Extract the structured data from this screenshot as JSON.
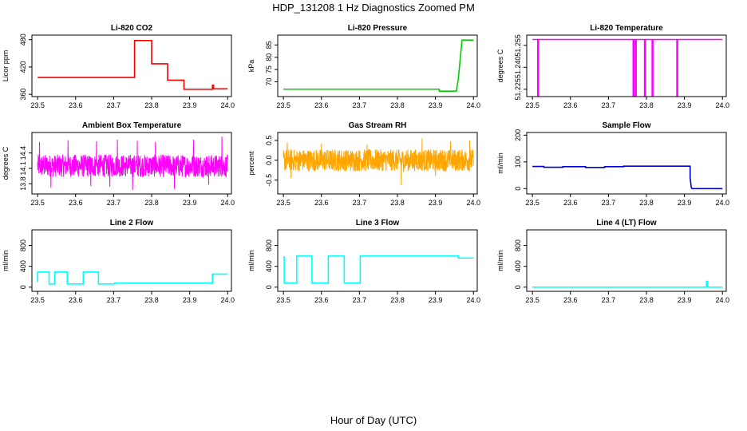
{
  "figure": {
    "title": "HDP_131208  1 Hz Diagnostics Zoomed PM",
    "xlabel": "Hour of Day (UTC)"
  },
  "chart_data": [
    {
      "type": "line",
      "title": "Li-820 CO2",
      "ylabel": "Licor ppm",
      "color": "#ff0000",
      "xlim": [
        23.485,
        24.01
      ],
      "ylim": [
        355,
        490
      ],
      "xticks": [
        23.5,
        23.6,
        23.7,
        23.8,
        23.9,
        24.0
      ],
      "xtick_labels": [
        "23.5",
        "23.6",
        "23.7",
        "23.8",
        "23.9",
        "24.0"
      ],
      "yticks": [
        360,
        420,
        480
      ],
      "ytick_labels": [
        "360",
        "420",
        "480"
      ],
      "series": [
        {
          "x": [
            23.5,
            23.755,
            23.755,
            23.8,
            23.8,
            23.842,
            23.842,
            23.885,
            23.885,
            23.96,
            23.96,
            23.963,
            23.963,
            24.0
          ],
          "y": [
            397,
            397,
            478,
            478,
            427,
            427,
            391,
            391,
            371,
            371,
            380,
            380,
            372,
            372
          ]
        }
      ]
    },
    {
      "type": "line",
      "title": "Li-820 Pressure",
      "ylabel": "kPa",
      "color": "#00cc00",
      "xlim": [
        23.485,
        24.01
      ],
      "ylim": [
        64,
        89
      ],
      "xticks": [
        23.5,
        23.6,
        23.7,
        23.8,
        23.9,
        24.0
      ],
      "xtick_labels": [
        "23.5",
        "23.6",
        "23.7",
        "23.8",
        "23.9",
        "24.0"
      ],
      "yticks": [
        70,
        75,
        80,
        85
      ],
      "ytick_labels": [
        "70",
        "75",
        "80",
        "85"
      ],
      "series": [
        {
          "x": [
            23.5,
            23.91,
            23.91,
            23.955,
            23.96,
            23.965,
            23.97,
            24.0
          ],
          "y": [
            67.0,
            67.0,
            66.2,
            66.2,
            71.0,
            79.0,
            87.0,
            87.0
          ]
        }
      ]
    },
    {
      "type": "line",
      "title": "Li-820 Temperature",
      "ylabel": "degrees C",
      "color": "#ff00ff",
      "xlim": [
        23.485,
        24.01
      ],
      "ylim": [
        51.22,
        51.262
      ],
      "xticks": [
        23.5,
        23.6,
        23.7,
        23.8,
        23.9,
        24.0
      ],
      "xtick_labels": [
        "23.5",
        "23.6",
        "23.7",
        "23.8",
        "23.9",
        "24.0"
      ],
      "yticks": [
        51.225,
        51.24,
        51.255
      ],
      "ytick_labels": [
        "51.225",
        "51.240",
        "51.255"
      ],
      "series": [
        {
          "x": [
            23.5,
            23.514,
            23.514,
            23.516,
            23.516,
            23.765,
            23.765,
            23.767,
            23.767,
            23.771,
            23.771,
            23.773,
            23.773,
            23.795,
            23.795,
            23.797,
            23.797,
            23.815,
            23.815,
            23.817,
            23.817,
            23.88,
            23.88,
            23.882,
            23.882,
            24.0
          ],
          "y": [
            51.259,
            51.259,
            51.22,
            51.22,
            51.259,
            51.259,
            51.22,
            51.22,
            51.259,
            51.259,
            51.22,
            51.22,
            51.259,
            51.259,
            51.22,
            51.22,
            51.259,
            51.259,
            51.22,
            51.22,
            51.259,
            51.259,
            51.22,
            51.22,
            51.259,
            51.259
          ]
        }
      ]
    },
    {
      "type": "line",
      "title": "Ambient Box Temperature",
      "ylabel": "degrees C",
      "color": "#ff00ff",
      "xlim": [
        23.485,
        24.01
      ],
      "ylim": [
        13.6,
        14.8
      ],
      "xticks": [
        23.5,
        23.6,
        23.7,
        23.8,
        23.9,
        24.0
      ],
      "xtick_labels": [
        "23.5",
        "23.6",
        "23.7",
        "23.8",
        "23.9",
        "24.0"
      ],
      "yticks": [
        13.8,
        14.1,
        14.4
      ],
      "ytick_labels": [
        "13.8",
        "14.1",
        "14.4"
      ],
      "noise": {
        "center": 14.15,
        "half_range": 0.22,
        "spikes": [
          [
            23.505,
            14.62
          ],
          [
            23.535,
            13.72
          ],
          [
            23.58,
            14.65
          ],
          [
            23.64,
            13.75
          ],
          [
            23.655,
            14.63
          ],
          [
            23.69,
            13.74
          ],
          [
            23.71,
            14.66
          ],
          [
            23.75,
            13.68
          ],
          [
            23.762,
            14.64
          ],
          [
            23.81,
            14.62
          ],
          [
            23.86,
            13.7
          ],
          [
            23.91,
            14.66
          ],
          [
            23.95,
            13.78
          ],
          [
            23.985,
            14.72
          ],
          [
            23.995,
            13.95
          ]
        ]
      }
    },
    {
      "type": "line",
      "title": "Gas Stream RH",
      "ylabel": "percent",
      "color": "#ffa500",
      "xlim": [
        23.485,
        24.01
      ],
      "ylim": [
        -0.85,
        0.7
      ],
      "xticks": [
        23.5,
        23.6,
        23.7,
        23.8,
        23.9,
        24.0
      ],
      "xtick_labels": [
        "23.5",
        "23.6",
        "23.7",
        "23.8",
        "23.9",
        "24.0"
      ],
      "yticks": [
        -0.5,
        0.0,
        0.5
      ],
      "ytick_labels": [
        "-0.5",
        "0.0",
        "0.5"
      ],
      "noise": {
        "center": 0.0,
        "half_range": 0.28,
        "spikes": [
          [
            23.51,
            0.45
          ],
          [
            23.52,
            -0.45
          ],
          [
            23.6,
            0.42
          ],
          [
            23.72,
            0.4
          ],
          [
            23.81,
            -0.63
          ],
          [
            23.865,
            0.55
          ],
          [
            23.9,
            -0.4
          ],
          [
            23.94,
            0.48
          ],
          [
            23.99,
            0.5
          ]
        ]
      }
    },
    {
      "type": "line",
      "title": "Sample Flow",
      "ylabel": "ml/min",
      "color": "#0000cc",
      "xlim": [
        23.485,
        24.01
      ],
      "ylim": [
        -20,
        210
      ],
      "xticks": [
        23.5,
        23.6,
        23.7,
        23.8,
        23.9,
        24.0
      ],
      "xtick_labels": [
        "23.5",
        "23.6",
        "23.7",
        "23.8",
        "23.9",
        "24.0"
      ],
      "yticks": [
        0,
        100,
        200
      ],
      "ytick_labels": [
        "0",
        "100",
        "200"
      ],
      "series": [
        {
          "x": [
            23.5,
            23.53,
            23.53,
            23.58,
            23.58,
            23.64,
            23.64,
            23.69,
            23.69,
            23.74,
            23.74,
            23.915,
            23.915,
            23.918,
            23.92,
            24.0
          ],
          "y": [
            83,
            83,
            80,
            80,
            82,
            82,
            79,
            79,
            82,
            82,
            84,
            84,
            40,
            4,
            0,
            0
          ]
        }
      ]
    },
    {
      "type": "line",
      "title": "Line 2 Flow",
      "ylabel": "ml/min",
      "color": "#00ffff",
      "xlim": [
        23.485,
        24.01
      ],
      "ylim": [
        -80,
        1100
      ],
      "xticks": [
        23.5,
        23.6,
        23.7,
        23.8,
        23.9,
        24.0
      ],
      "xtick_labels": [
        "23.5",
        "23.6",
        "23.7",
        "23.8",
        "23.9",
        "24.0"
      ],
      "yticks": [
        0,
        400,
        800
      ],
      "ytick_labels": [
        "0",
        "400",
        "800"
      ],
      "series": [
        {
          "x": [
            23.5,
            23.5,
            23.53,
            23.53,
            23.545,
            23.545,
            23.578,
            23.578,
            23.62,
            23.62,
            23.66,
            23.66,
            23.703,
            23.703,
            23.96,
            23.96,
            24.0
          ],
          "y": [
            100,
            290,
            290,
            60,
            60,
            290,
            290,
            60,
            60,
            290,
            290,
            60,
            60,
            80,
            80,
            250,
            250
          ]
        }
      ]
    },
    {
      "type": "line",
      "title": "Line 3 Flow",
      "ylabel": "ml/min",
      "color": "#00ffff",
      "xlim": [
        23.485,
        24.01
      ],
      "ylim": [
        -80,
        1100
      ],
      "xticks": [
        23.5,
        23.6,
        23.7,
        23.8,
        23.9,
        24.0
      ],
      "xtick_labels": [
        "23.5",
        "23.6",
        "23.7",
        "23.8",
        "23.9",
        "24.0"
      ],
      "yticks": [
        0,
        400,
        800
      ],
      "ytick_labels": [
        "0",
        "400",
        "800"
      ],
      "series": [
        {
          "x": [
            23.5,
            23.5,
            23.502,
            23.502,
            23.535,
            23.535,
            23.575,
            23.575,
            23.618,
            23.618,
            23.66,
            23.66,
            23.702,
            23.702,
            23.96,
            23.96,
            24.0
          ],
          "y": [
            580,
            580,
            580,
            80,
            80,
            600,
            600,
            80,
            80,
            600,
            600,
            80,
            80,
            600,
            600,
            560,
            560
          ]
        }
      ]
    },
    {
      "type": "line",
      "title": "Line 4 (LT) Flow",
      "ylabel": "ml/min",
      "color": "#00ffff",
      "xlim": [
        23.485,
        24.01
      ],
      "ylim": [
        -80,
        1100
      ],
      "xticks": [
        23.5,
        23.6,
        23.7,
        23.8,
        23.9,
        24.0
      ],
      "xtick_labels": [
        "23.5",
        "23.6",
        "23.7",
        "23.8",
        "23.9",
        "24.0"
      ],
      "yticks": [
        0,
        400,
        800
      ],
      "ytick_labels": [
        "0",
        "400",
        "800"
      ],
      "series": [
        {
          "x": [
            23.5,
            23.958,
            23.958,
            23.961,
            23.961,
            24.0
          ],
          "y": [
            0,
            0,
            110,
            110,
            0,
            0
          ]
        }
      ]
    }
  ]
}
